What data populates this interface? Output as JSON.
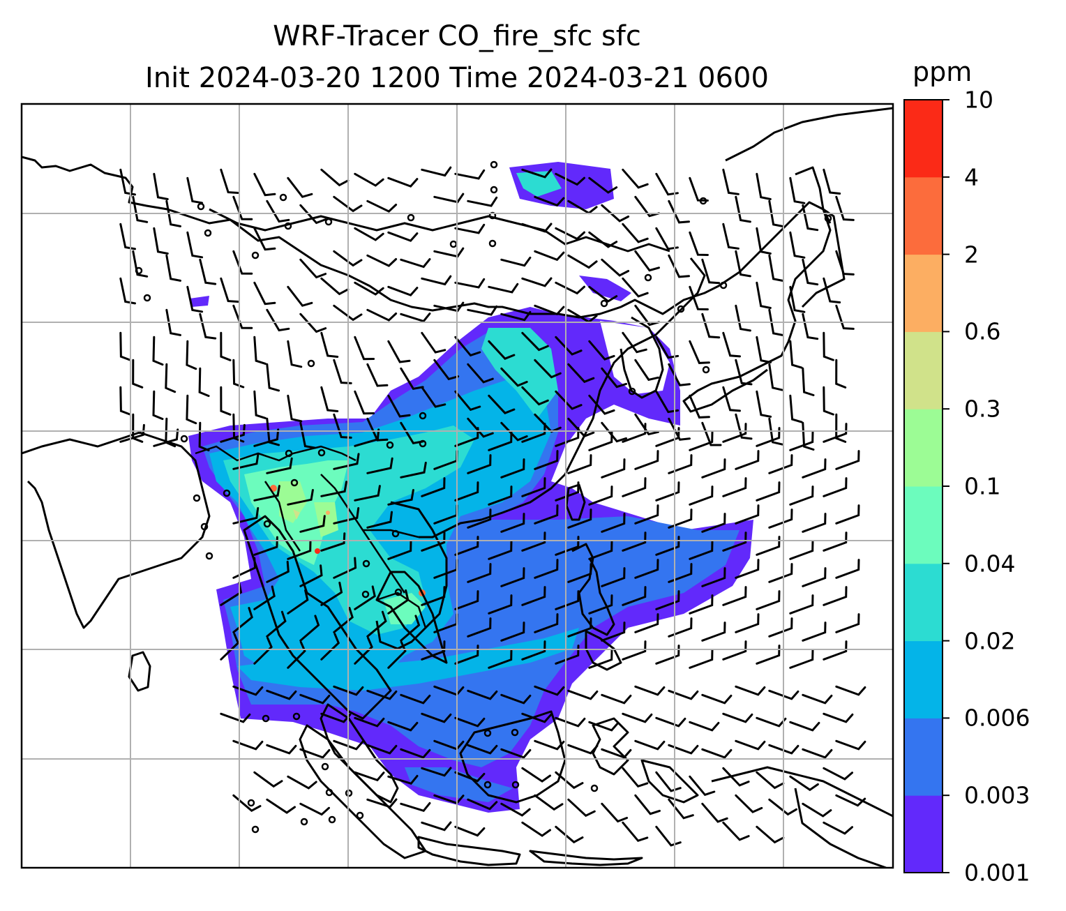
{
  "title": {
    "line1": "WRF-Tracer CO_fire_sfc sfc",
    "line2": "Init 2024-03-20 1200 Time 2024-03-21 0600"
  },
  "colorbar": {
    "units": "ppm",
    "levels": [
      "0.001",
      "0.003",
      "0.006",
      "0.02",
      "0.04",
      "0.1",
      "0.3",
      "0.6",
      "2",
      "4",
      "10"
    ],
    "colors": [
      "#6229fb",
      "#3475f0",
      "#04b4e8",
      "#2cdcd2",
      "#6cfcbd",
      "#9cfc95",
      "#d0e28a",
      "#fcae62",
      "#fc6c3c",
      "#fb2a17"
    ]
  },
  "map": {
    "variable": "CO_fire_sfc",
    "level": "sfc",
    "gridlines": true,
    "coastlines": true,
    "country_borders": true,
    "wind_barbs": true
  }
}
